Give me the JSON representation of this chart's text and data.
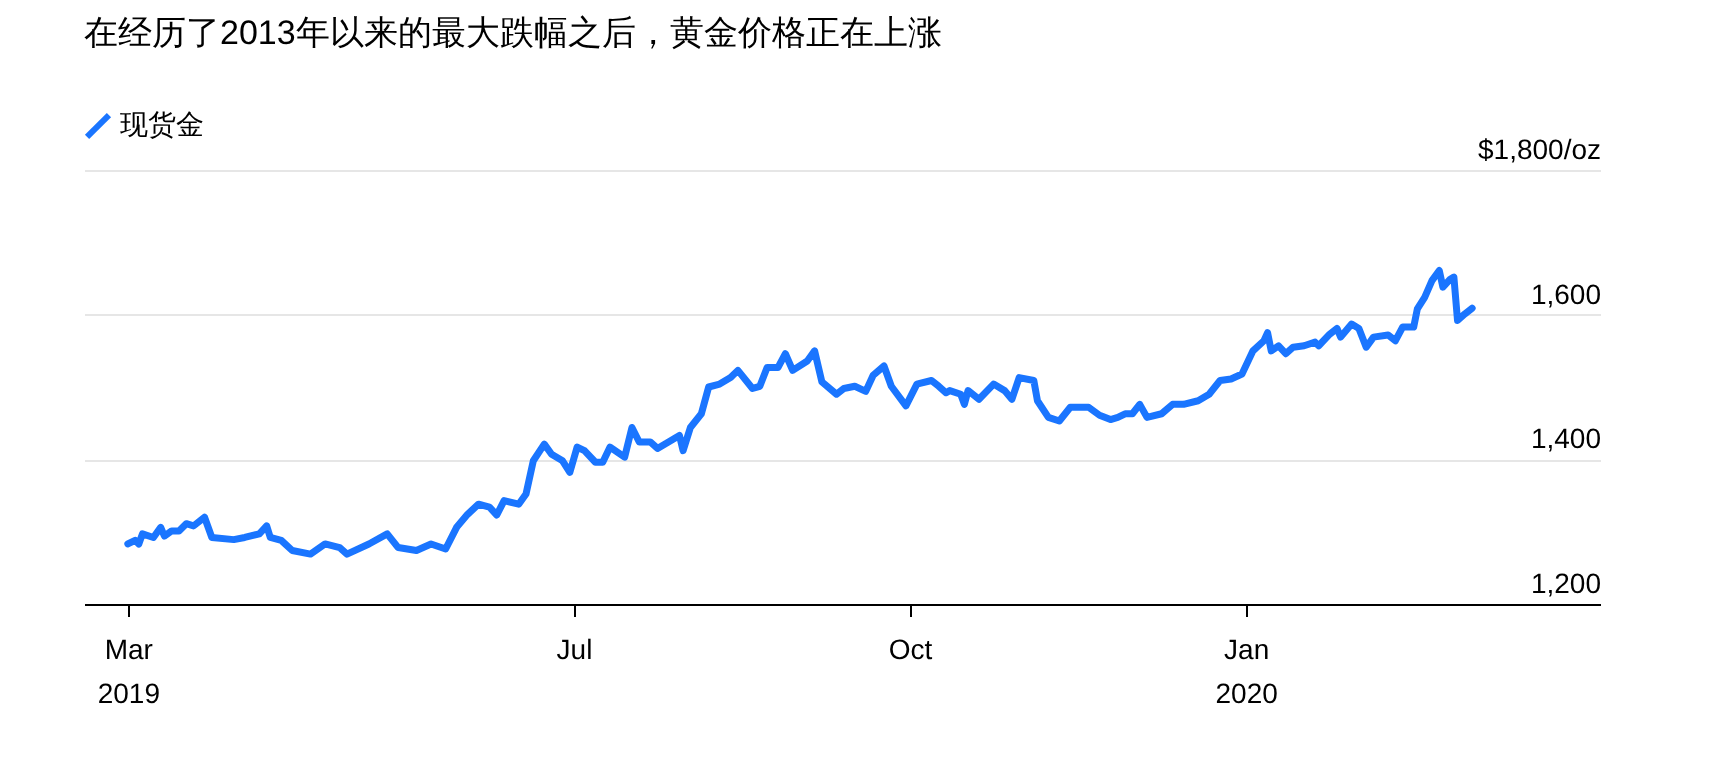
{
  "chart_data": {
    "type": "line",
    "title": "在经历了2013年以来的最大跌幅之后，黄金价格正在上涨",
    "xlim": [
      "2019-02-17",
      "2020-04-07"
    ],
    "xticks": [
      {
        "value": "2019-03-01",
        "label": "Mar\n2019"
      },
      {
        "value": "2019-07-01",
        "label": "Jul"
      },
      {
        "value": "2019-10-01",
        "label": "Oct"
      },
      {
        "value": "2020-01-01",
        "label": "Jan\n2020"
      }
    ],
    "ylim": [
      1200,
      1800
    ],
    "yticks": [
      {
        "value": 1200,
        "label": "1,200"
      },
      {
        "value": 1400,
        "label": "1,400"
      },
      {
        "value": 1600,
        "label": "1,600"
      },
      {
        "value": 1800,
        "label": "$1,800/oz"
      }
    ],
    "grid": "y",
    "legend": "top left",
    "line_style": "solid",
    "x": [
      "2019-03-01",
      "2019-03-03",
      "2019-03-04",
      "2019-03-05",
      "2019-03-08",
      "2019-03-10",
      "2019-03-11",
      "2019-03-13",
      "2019-03-15",
      "2019-03-17",
      "2019-03-19",
      "2019-03-22",
      "2019-03-24",
      "2019-03-30",
      "2019-04-02",
      "2019-04-06",
      "2019-04-08",
      "2019-04-09",
      "2019-04-12",
      "2019-04-15",
      "2019-04-20",
      "2019-04-24",
      "2019-04-28",
      "2019-04-30",
      "2019-05-06",
      "2019-05-11",
      "2019-05-14",
      "2019-05-19",
      "2019-05-23",
      "2019-05-27",
      "2019-05-30",
      "2019-06-02",
      "2019-06-05",
      "2019-06-08",
      "2019-06-10",
      "2019-06-12",
      "2019-06-16",
      "2019-06-18",
      "2019-06-20",
      "2019-06-23",
      "2019-06-25",
      "2019-06-28",
      "2019-06-30",
      "2019-07-02",
      "2019-07-04",
      "2019-07-07",
      "2019-07-09",
      "2019-07-11",
      "2019-07-15",
      "2019-07-17",
      "2019-07-19",
      "2019-07-22",
      "2019-07-24",
      "2019-07-30",
      "2019-07-31",
      "2019-08-02",
      "2019-08-05",
      "2019-08-07",
      "2019-08-10",
      "2019-08-13",
      "2019-08-15",
      "2019-08-19",
      "2019-08-21",
      "2019-08-23",
      "2019-08-26",
      "2019-08-28",
      "2019-08-30",
      "2019-09-03",
      "2019-09-05",
      "2019-09-07",
      "2019-09-11",
      "2019-09-13",
      "2019-09-16",
      "2019-09-19",
      "2019-09-21",
      "2019-09-24",
      "2019-09-26",
      "2019-09-30",
      "2019-10-03",
      "2019-10-07",
      "2019-10-09",
      "2019-10-11",
      "2019-10-12",
      "2019-10-15",
      "2019-10-16",
      "2019-10-17",
      "2019-10-20",
      "2019-10-24",
      "2019-10-27",
      "2019-10-29",
      "2019-10-31",
      "2019-11-04",
      "2019-11-05",
      "2019-11-08",
      "2019-11-11",
      "2019-11-14",
      "2019-11-19",
      "2019-11-22",
      "2019-11-25",
      "2019-11-27",
      "2019-11-29",
      "2019-12-01",
      "2019-12-03",
      "2019-12-05",
      "2019-12-09",
      "2019-12-12",
      "2019-12-15",
      "2019-12-19",
      "2019-12-22",
      "2019-12-25",
      "2019-12-28",
      "2019-12-31",
      "2020-01-03",
      "2020-01-06",
      "2020-01-07",
      "2020-01-08",
      "2020-01-10",
      "2020-01-12",
      "2020-01-14",
      "2020-01-17",
      "2020-01-20",
      "2020-01-21",
      "2020-01-24",
      "2020-01-26",
      "2020-01-27",
      "2020-01-30",
      "2020-02-01",
      "2020-02-03",
      "2020-02-05",
      "2020-02-09",
      "2020-02-11",
      "2020-02-13",
      "2020-02-16",
      "2020-02-17",
      "2020-02-19",
      "2020-02-21",
      "2020-02-23",
      "2020-02-24",
      "2020-02-26",
      "2020-02-27",
      "2020-02-28",
      "2020-03-01",
      "2020-03-03"
    ],
    "series": [
      {
        "name": "现货金",
        "color": "#1a75ff",
        "values": [
          1283,
          1288,
          1283,
          1297,
          1292,
          1306,
          1294,
          1301,
          1301,
          1311,
          1308,
          1320,
          1292,
          1289,
          1292,
          1297,
          1308,
          1292,
          1288,
          1274,
          1269,
          1283,
          1278,
          1269,
          1283,
          1297,
          1278,
          1274,
          1283,
          1276,
          1306,
          1324,
          1338,
          1334,
          1323,
          1343,
          1338,
          1352,
          1398,
          1421,
          1407,
          1398,
          1382,
          1417,
          1412,
          1396,
          1396,
          1417,
          1403,
          1444,
          1424,
          1424,
          1415,
          1433,
          1412,
          1444,
          1463,
          1500,
          1504,
          1513,
          1523,
          1498,
          1501,
          1527,
          1527,
          1546,
          1523,
          1536,
          1550,
          1507,
          1490,
          1498,
          1501,
          1494,
          1516,
          1529,
          1501,
          1474,
          1504,
          1509,
          1501,
          1492,
          1495,
          1490,
          1476,
          1495,
          1483,
          1504,
          1495,
          1483,
          1513,
          1509,
          1481,
          1458,
          1453,
          1472,
          1472,
          1461,
          1455,
          1458,
          1463,
          1463,
          1476,
          1458,
          1463,
          1476,
          1476,
          1481,
          1490,
          1509,
          1511,
          1518,
          1550,
          1564,
          1575,
          1550,
          1557,
          1546,
          1555,
          1557,
          1562,
          1557,
          1573,
          1581,
          1569,
          1587,
          1581,
          1555,
          1569,
          1572,
          1564,
          1583,
          1583,
          1608,
          1624,
          1647,
          1661,
          1638,
          1649,
          1652,
          1592,
          1601,
          1609
        ]
      }
    ]
  }
}
